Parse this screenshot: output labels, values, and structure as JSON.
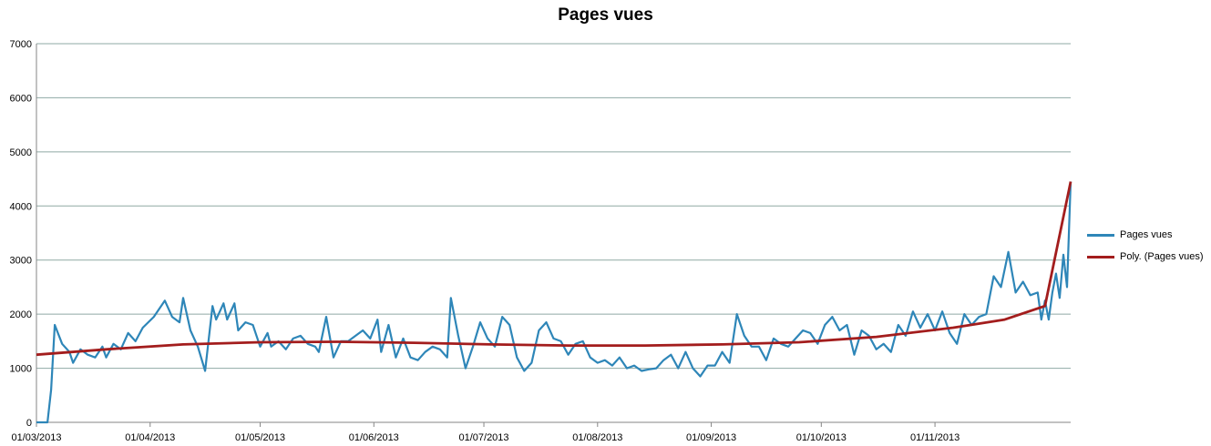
{
  "chart_data": {
    "type": "line",
    "title": "Pages vues",
    "xlabel": "",
    "ylabel": "",
    "ylim": [
      0,
      7000
    ],
    "yticks": [
      "0",
      "1000",
      "2000",
      "3000",
      "4000",
      "5000",
      "6000",
      "7000"
    ],
    "xticks": [
      "01/03/2013",
      "01/04/2013",
      "01/05/2013",
      "01/06/2013",
      "01/07/2013",
      "01/08/2013",
      "01/09/2013",
      "01/10/2013",
      "01/11/2013"
    ],
    "x_range": [
      "2013-03-01",
      "2013-12-08"
    ],
    "grid": "horizontal",
    "legend_position": "right",
    "series": [
      {
        "name": "Pages vues",
        "color": "#2E86B8",
        "points": [
          [
            "2013-03-01",
            0
          ],
          [
            "2013-03-04",
            0
          ],
          [
            "2013-03-05",
            600
          ],
          [
            "2013-03-06",
            1800
          ],
          [
            "2013-03-08",
            1450
          ],
          [
            "2013-03-10",
            1300
          ],
          [
            "2013-03-11",
            1100
          ],
          [
            "2013-03-13",
            1350
          ],
          [
            "2013-03-15",
            1250
          ],
          [
            "2013-03-17",
            1200
          ],
          [
            "2013-03-19",
            1400
          ],
          [
            "2013-03-20",
            1200
          ],
          [
            "2013-03-22",
            1450
          ],
          [
            "2013-03-24",
            1350
          ],
          [
            "2013-03-26",
            1650
          ],
          [
            "2013-03-28",
            1500
          ],
          [
            "2013-03-30",
            1750
          ],
          [
            "2013-04-02",
            1950
          ],
          [
            "2013-04-05",
            2250
          ],
          [
            "2013-04-07",
            1950
          ],
          [
            "2013-04-09",
            1850
          ],
          [
            "2013-04-10",
            2300
          ],
          [
            "2013-04-12",
            1700
          ],
          [
            "2013-04-14",
            1400
          ],
          [
            "2013-04-16",
            950
          ],
          [
            "2013-04-18",
            2150
          ],
          [
            "2013-04-19",
            1900
          ],
          [
            "2013-04-21",
            2200
          ],
          [
            "2013-04-22",
            1900
          ],
          [
            "2013-04-24",
            2200
          ],
          [
            "2013-04-25",
            1700
          ],
          [
            "2013-04-27",
            1850
          ],
          [
            "2013-04-29",
            1800
          ],
          [
            "2013-05-01",
            1400
          ],
          [
            "2013-05-03",
            1650
          ],
          [
            "2013-05-04",
            1400
          ],
          [
            "2013-05-06",
            1500
          ],
          [
            "2013-05-08",
            1350
          ],
          [
            "2013-05-10",
            1550
          ],
          [
            "2013-05-12",
            1600
          ],
          [
            "2013-05-14",
            1450
          ],
          [
            "2013-05-16",
            1400
          ],
          [
            "2013-05-17",
            1300
          ],
          [
            "2013-05-19",
            1950
          ],
          [
            "2013-05-21",
            1200
          ],
          [
            "2013-05-23",
            1500
          ],
          [
            "2013-05-25",
            1500
          ],
          [
            "2013-05-27",
            1600
          ],
          [
            "2013-05-29",
            1700
          ],
          [
            "2013-05-31",
            1550
          ],
          [
            "2013-06-02",
            1900
          ],
          [
            "2013-06-03",
            1300
          ],
          [
            "2013-06-05",
            1800
          ],
          [
            "2013-06-07",
            1200
          ],
          [
            "2013-06-09",
            1550
          ],
          [
            "2013-06-11",
            1200
          ],
          [
            "2013-06-13",
            1150
          ],
          [
            "2013-06-15",
            1300
          ],
          [
            "2013-06-17",
            1400
          ],
          [
            "2013-06-19",
            1350
          ],
          [
            "2013-06-21",
            1200
          ],
          [
            "2013-06-22",
            2300
          ],
          [
            "2013-06-24",
            1600
          ],
          [
            "2013-06-26",
            1000
          ],
          [
            "2013-06-28",
            1400
          ],
          [
            "2013-06-30",
            1850
          ],
          [
            "2013-07-02",
            1550
          ],
          [
            "2013-07-04",
            1400
          ],
          [
            "2013-07-06",
            1950
          ],
          [
            "2013-07-08",
            1800
          ],
          [
            "2013-07-10",
            1200
          ],
          [
            "2013-07-12",
            950
          ],
          [
            "2013-07-14",
            1100
          ],
          [
            "2013-07-16",
            1700
          ],
          [
            "2013-07-18",
            1850
          ],
          [
            "2013-07-20",
            1550
          ],
          [
            "2013-07-22",
            1500
          ],
          [
            "2013-07-24",
            1250
          ],
          [
            "2013-07-26",
            1450
          ],
          [
            "2013-07-28",
            1500
          ],
          [
            "2013-07-30",
            1200
          ],
          [
            "2013-08-01",
            1100
          ],
          [
            "2013-08-03",
            1150
          ],
          [
            "2013-08-05",
            1050
          ],
          [
            "2013-08-07",
            1200
          ],
          [
            "2013-08-09",
            1000
          ],
          [
            "2013-08-11",
            1050
          ],
          [
            "2013-08-13",
            950
          ],
          [
            "2013-08-15",
            980
          ],
          [
            "2013-08-17",
            1000
          ],
          [
            "2013-08-19",
            1150
          ],
          [
            "2013-08-21",
            1250
          ],
          [
            "2013-08-23",
            1000
          ],
          [
            "2013-08-25",
            1300
          ],
          [
            "2013-08-27",
            1000
          ],
          [
            "2013-08-29",
            850
          ],
          [
            "2013-08-31",
            1050
          ],
          [
            "2013-09-02",
            1050
          ],
          [
            "2013-09-04",
            1300
          ],
          [
            "2013-09-06",
            1100
          ],
          [
            "2013-09-08",
            2000
          ],
          [
            "2013-09-10",
            1600
          ],
          [
            "2013-09-12",
            1400
          ],
          [
            "2013-09-14",
            1400
          ],
          [
            "2013-09-16",
            1150
          ],
          [
            "2013-09-18",
            1550
          ],
          [
            "2013-09-20",
            1450
          ],
          [
            "2013-09-22",
            1400
          ],
          [
            "2013-09-24",
            1550
          ],
          [
            "2013-09-26",
            1700
          ],
          [
            "2013-09-28",
            1650
          ],
          [
            "2013-09-30",
            1450
          ],
          [
            "2013-10-02",
            1800
          ],
          [
            "2013-10-04",
            1950
          ],
          [
            "2013-10-06",
            1700
          ],
          [
            "2013-10-08",
            1800
          ],
          [
            "2013-10-10",
            1250
          ],
          [
            "2013-10-12",
            1700
          ],
          [
            "2013-10-14",
            1600
          ],
          [
            "2013-10-16",
            1350
          ],
          [
            "2013-10-18",
            1450
          ],
          [
            "2013-10-20",
            1300
          ],
          [
            "2013-10-22",
            1800
          ],
          [
            "2013-10-24",
            1600
          ],
          [
            "2013-10-26",
            2050
          ],
          [
            "2013-10-28",
            1750
          ],
          [
            "2013-10-30",
            2000
          ],
          [
            "2013-11-01",
            1700
          ],
          [
            "2013-11-03",
            2050
          ],
          [
            "2013-11-05",
            1650
          ],
          [
            "2013-11-07",
            1450
          ],
          [
            "2013-11-09",
            2000
          ],
          [
            "2013-11-11",
            1800
          ],
          [
            "2013-11-13",
            1950
          ],
          [
            "2013-11-15",
            2000
          ],
          [
            "2013-11-17",
            2700
          ],
          [
            "2013-11-19",
            2500
          ],
          [
            "2013-11-21",
            3150
          ],
          [
            "2013-11-23",
            2400
          ],
          [
            "2013-11-25",
            2600
          ],
          [
            "2013-11-27",
            2350
          ],
          [
            "2013-11-29",
            2400
          ],
          [
            "2013-11-30",
            1900
          ],
          [
            "2013-12-01",
            2250
          ],
          [
            "2013-12-02",
            1900
          ],
          [
            "2013-12-03",
            2400
          ],
          [
            "2013-12-04",
            2750
          ],
          [
            "2013-12-05",
            2300
          ],
          [
            "2013-12-06",
            3100
          ],
          [
            "2013-12-07",
            2500
          ],
          [
            "2013-12-08",
            4450
          ]
        ]
      },
      {
        "name": "Poly. (Pages vues)",
        "color": "#A31D1D",
        "points": [
          [
            "2013-03-01",
            1250
          ],
          [
            "2013-03-20",
            1350
          ],
          [
            "2013-04-10",
            1440
          ],
          [
            "2013-05-01",
            1480
          ],
          [
            "2013-05-22",
            1490
          ],
          [
            "2013-06-12",
            1470
          ],
          [
            "2013-07-03",
            1440
          ],
          [
            "2013-07-24",
            1420
          ],
          [
            "2013-08-14",
            1420
          ],
          [
            "2013-09-04",
            1440
          ],
          [
            "2013-09-25",
            1480
          ],
          [
            "2013-10-16",
            1580
          ],
          [
            "2013-11-06",
            1750
          ],
          [
            "2013-11-20",
            1900
          ],
          [
            "2013-12-01",
            2150
          ],
          [
            "2013-12-08",
            4450
          ]
        ]
      }
    ]
  }
}
